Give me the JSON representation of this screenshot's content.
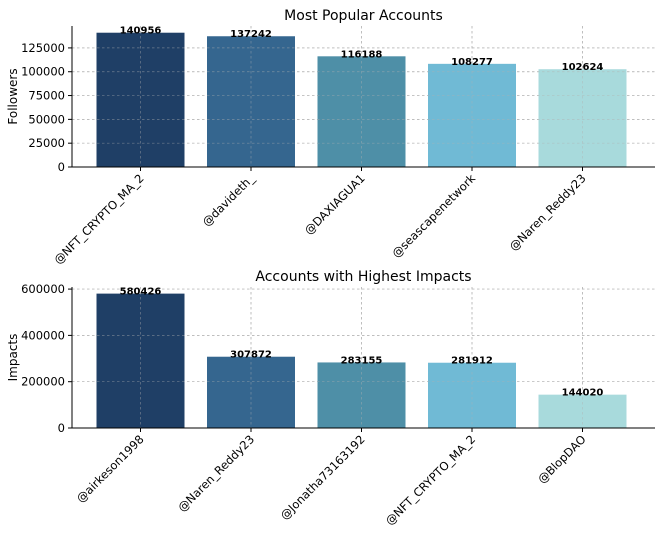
{
  "chart_data": [
    {
      "type": "bar",
      "title": "Most Popular Accounts",
      "xlabel": "",
      "ylabel": "Followers",
      "categories": [
        "@NFT_CRYPTO_MA_2",
        "@davideth_",
        "@DAXIAGUA1",
        "@seascapenetwork",
        "@Naren_Reddy23"
      ],
      "values": [
        140956,
        137242,
        116188,
        108277,
        102624
      ],
      "data_labels": [
        "140956",
        "137242",
        "116188",
        "108277",
        "102624"
      ],
      "ylim": [
        0,
        148000
      ],
      "yticks": [
        0,
        25000,
        50000,
        75000,
        100000,
        125000
      ],
      "ytick_labels": [
        "0",
        "25000",
        "50000",
        "75000",
        "100000",
        "125000"
      ],
      "grid": true,
      "colors": [
        "#1f3f66",
        "#35668f",
        "#4e8fa7",
        "#70bad5",
        "#a8dadc"
      ]
    },
    {
      "type": "bar",
      "title": "Accounts with Highest Impacts",
      "xlabel": "",
      "ylabel": "Impacts",
      "categories": [
        "@airkeson1998",
        "@Naren_Reddy23",
        "@Jonatha73163192",
        "@NFT_CRYPTO_MA_2",
        "@BlopDAO"
      ],
      "values": [
        580426,
        307872,
        283155,
        281912,
        144020
      ],
      "data_labels": [
        "580426",
        "307872",
        "283155",
        "281912",
        "144020"
      ],
      "ylim": [
        0,
        609000
      ],
      "yticks": [
        0,
        200000,
        400000,
        600000
      ],
      "ytick_labels": [
        "0",
        "200000",
        "400000",
        "600000"
      ],
      "grid": true,
      "colors": [
        "#1f3f66",
        "#35668f",
        "#4e8fa7",
        "#70bad5",
        "#a8dadc"
      ]
    }
  ]
}
